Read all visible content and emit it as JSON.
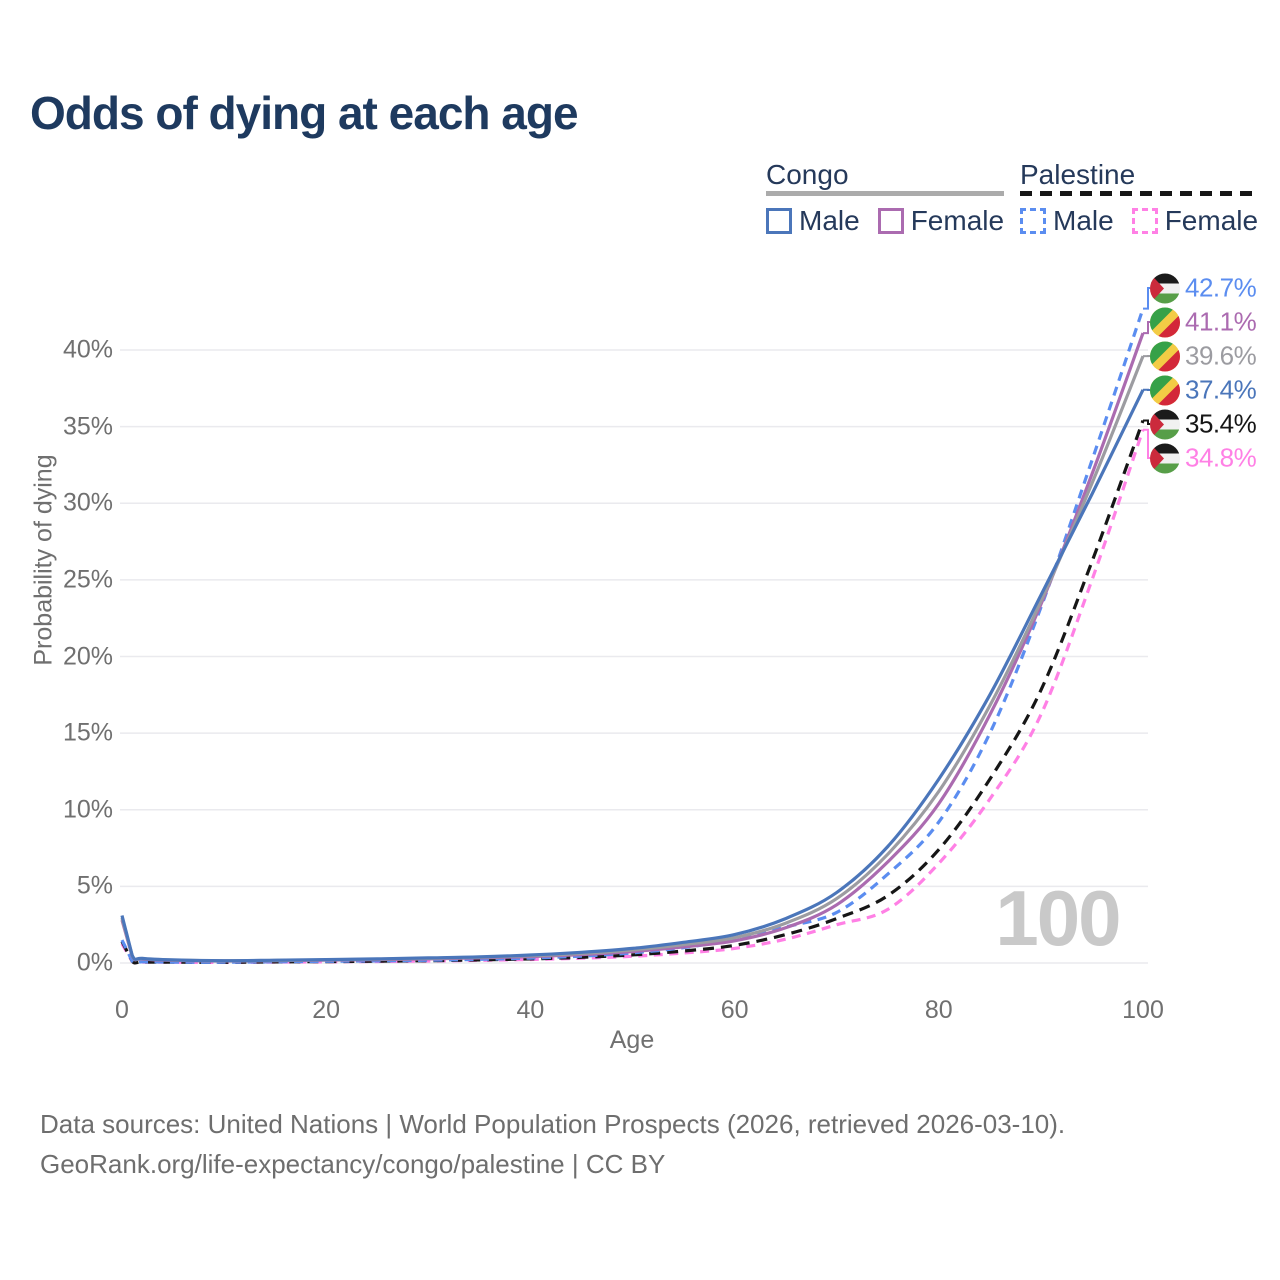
{
  "header": {
    "title": "Odds of dying at each age"
  },
  "legend": {
    "groups": [
      {
        "label": "Congo",
        "underline_style": "solid",
        "underline_color": "#ababab",
        "items": [
          {
            "label": "Male",
            "color": "#4b76ba",
            "dashed": false
          },
          {
            "label": "Female",
            "color": "#ab6bb0",
            "dashed": false
          }
        ]
      },
      {
        "label": "Palestine",
        "underline_style": "dashed",
        "underline_color": "#161616",
        "items": [
          {
            "label": "Male",
            "color": "#5b8df0",
            "dashed": true
          },
          {
            "label": "Female",
            "color": "#ff80e5",
            "dashed": true
          }
        ]
      }
    ]
  },
  "chart_data": {
    "type": "line",
    "title": "Odds of dying at each age",
    "xlabel": "Age",
    "ylabel": "Probability of dying",
    "y_unit": "%",
    "xlim": [
      0,
      100
    ],
    "ylim": [
      0,
      44
    ],
    "grid": "horizontal",
    "legend_position": "top-right",
    "watermark": "100",
    "x_ticks": [
      0,
      20,
      40,
      60,
      80,
      100
    ],
    "x_tick_labels": [
      "0",
      "20",
      "40",
      "60",
      "80",
      "100"
    ],
    "y_ticks": [
      0,
      5,
      10,
      15,
      20,
      25,
      30,
      35,
      40
    ],
    "y_tick_labels": [
      "0%",
      "5%",
      "10%",
      "15%",
      "20%",
      "25%",
      "30%",
      "35%",
      "40%"
    ],
    "x": [
      0,
      1,
      2,
      5,
      10,
      15,
      20,
      25,
      30,
      35,
      40,
      45,
      50,
      55,
      60,
      65,
      70,
      75,
      80,
      85,
      90,
      95,
      100
    ],
    "series": [
      {
        "name": "Palestine Female",
        "country": "palestine",
        "sex": "female",
        "color": "#ff80e5",
        "dashed": true,
        "end_label": "34.8%",
        "values": [
          1.25,
          0.1,
          0.06,
          0.05,
          0.04,
          0.06,
          0.08,
          0.1,
          0.13,
          0.17,
          0.23,
          0.31,
          0.44,
          0.65,
          0.95,
          1.55,
          2.5,
          3.5,
          6.5,
          10.7,
          16.2,
          25.0,
          34.8
        ]
      },
      {
        "name": "Palestine (both sexes)",
        "country": "palestine",
        "sex": "both",
        "color": "#161616",
        "dashed": true,
        "end_label": "35.4%",
        "values": [
          1.4,
          0.11,
          0.07,
          0.055,
          0.045,
          0.07,
          0.09,
          0.12,
          0.15,
          0.2,
          0.27,
          0.37,
          0.53,
          0.78,
          1.15,
          1.85,
          2.9,
          4.4,
          7.4,
          12.0,
          17.8,
          26.2,
          35.4
        ]
      },
      {
        "name": "Palestine Male",
        "country": "palestine",
        "sex": "male",
        "color": "#5b8df0",
        "dashed": true,
        "end_label": "42.7%",
        "values": [
          1.5,
          0.12,
          0.08,
          0.06,
          0.05,
          0.08,
          0.11,
          0.14,
          0.18,
          0.24,
          0.32,
          0.45,
          0.66,
          1.0,
          1.55,
          2.35,
          3.3,
          5.8,
          9.2,
          15.0,
          23.2,
          32.8,
          42.7
        ]
      },
      {
        "name": "Congo Female",
        "country": "congo",
        "sex": "female",
        "color": "#ab6bb0",
        "dashed": false,
        "end_label": "41.1%",
        "values": [
          2.8,
          0.44,
          0.26,
          0.17,
          0.13,
          0.15,
          0.18,
          0.22,
          0.27,
          0.33,
          0.42,
          0.55,
          0.75,
          1.05,
          1.45,
          2.3,
          3.8,
          6.6,
          10.4,
          16.2,
          23.4,
          31.9,
          41.1
        ]
      },
      {
        "name": "Congo (both sexes)",
        "country": "congo",
        "sex": "both",
        "color": "#9c9ca1",
        "dashed": false,
        "end_label": "39.6%",
        "values": [
          2.95,
          0.47,
          0.28,
          0.19,
          0.14,
          0.16,
          0.2,
          0.25,
          0.3,
          0.37,
          0.47,
          0.62,
          0.85,
          1.2,
          1.65,
          2.6,
          4.2,
          7.1,
          11.2,
          16.8,
          23.6,
          31.3,
          39.6
        ]
      },
      {
        "name": "Congo Male",
        "country": "congo",
        "sex": "male",
        "color": "#4b76ba",
        "dashed": false,
        "end_label": "37.4%",
        "values": [
          3.1,
          0.5,
          0.3,
          0.2,
          0.15,
          0.18,
          0.22,
          0.27,
          0.33,
          0.4,
          0.52,
          0.7,
          0.95,
          1.35,
          1.85,
          2.9,
          4.6,
          7.6,
          12.0,
          17.5,
          24.0,
          30.6,
          37.4
        ]
      }
    ],
    "flag_colors": {
      "congo": {
        "green": "#36a148",
        "yellow": "#f3cc45",
        "red": "#d32839"
      },
      "palestine": {
        "black": "#1b1b1b",
        "white": "#f1f1f1",
        "green": "#579e48",
        "red": "#cb2a3c"
      }
    }
  },
  "footer": {
    "line1": "Data sources: United Nations | World Population Prospects (2026, retrieved 2026-03-10).",
    "line2": "GeoRank.org/life-expectancy/congo/palestine | CC BY"
  }
}
